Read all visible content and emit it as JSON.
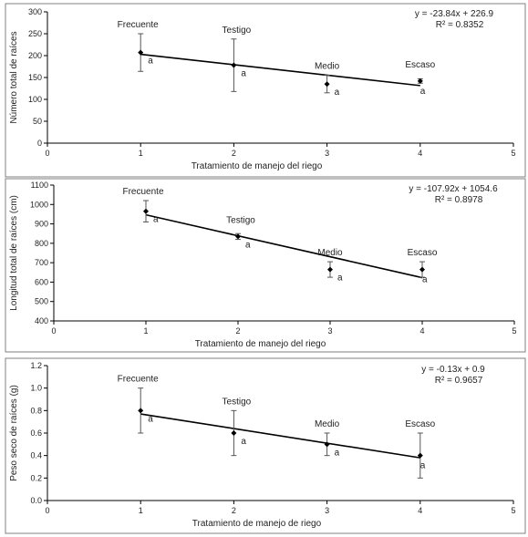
{
  "chart_data": [
    {
      "type": "scatter",
      "x": [
        1,
        2,
        3,
        4
      ],
      "values": [
        207,
        178,
        135,
        142
      ],
      "error": [
        43,
        60,
        20,
        5
      ],
      "point_labels": [
        "Frecuente",
        "Testigo",
        "Medio",
        "Escaso"
      ],
      "significance": [
        "a",
        "a",
        "a",
        "a"
      ],
      "trendline": {
        "slope": -23.84,
        "intercept": 226.9
      },
      "equation": "y = -23.84x + 226.9",
      "r2_text": "R² = 0.8352",
      "xlabel": "Tratamiento de manejo del riego",
      "ylabel": "Número total de raíces",
      "xlim": [
        0,
        5
      ],
      "ylim": [
        0,
        300
      ],
      "xticks": [
        0,
        1,
        2,
        3,
        4,
        5
      ],
      "yticks": [
        0,
        50,
        100,
        150,
        200,
        250,
        300
      ],
      "grid": false,
      "color": "#000000"
    },
    {
      "type": "scatter",
      "x": [
        1,
        2,
        3,
        4
      ],
      "values": [
        965,
        835,
        665,
        665
      ],
      "error": [
        55,
        15,
        40,
        40
      ],
      "point_labels": [
        "Frecuente",
        "Testigo",
        "Medio",
        "Escaso"
      ],
      "significance": [
        "a",
        "a",
        "a",
        "a"
      ],
      "trendline": {
        "slope": -107.92,
        "intercept": 1054.6
      },
      "equation": "y = -107.92x + 1054.6",
      "r2_text": "R² = 0.8978",
      "xlabel": "Tratamiento de manejo del riego",
      "ylabel": "Longitud total de raíces (cm)",
      "xlim": [
        0,
        5
      ],
      "ylim": [
        400,
        1100
      ],
      "xticks": [
        0,
        1,
        2,
        3,
        4,
        5
      ],
      "yticks": [
        400,
        500,
        600,
        700,
        800,
        900,
        1000,
        1100
      ],
      "grid": false,
      "color": "#000000"
    },
    {
      "type": "scatter",
      "x": [
        1,
        2,
        3,
        4
      ],
      "values": [
        0.8,
        0.6,
        0.5,
        0.4
      ],
      "error": [
        0.2,
        0.2,
        0.1,
        0.2
      ],
      "point_labels": [
        "Frecuente",
        "Testigo",
        "Medio",
        "Escaso"
      ],
      "significance": [
        "a",
        "a",
        "a",
        "a"
      ],
      "trendline": {
        "slope": -0.13,
        "intercept": 0.9
      },
      "equation": "y = -0.13x + 0.9",
      "r2_text": "R² = 0.9657",
      "xlabel": "Tratamiento de manejo de riego",
      "ylabel": "Peso seco de raíces (g)",
      "xlim": [
        0,
        5
      ],
      "ylim": [
        0,
        1.2
      ],
      "xticks": [
        0,
        1,
        2,
        3,
        4,
        5
      ],
      "yticks": [
        0.0,
        0.2,
        0.4,
        0.6,
        0.8,
        1.0,
        1.2
      ],
      "ytick_labels": [
        "0.0",
        "0.2",
        "0.4",
        "0.6",
        "0.8",
        "1.0",
        "1.2"
      ],
      "grid": false,
      "color": "#000000"
    }
  ]
}
